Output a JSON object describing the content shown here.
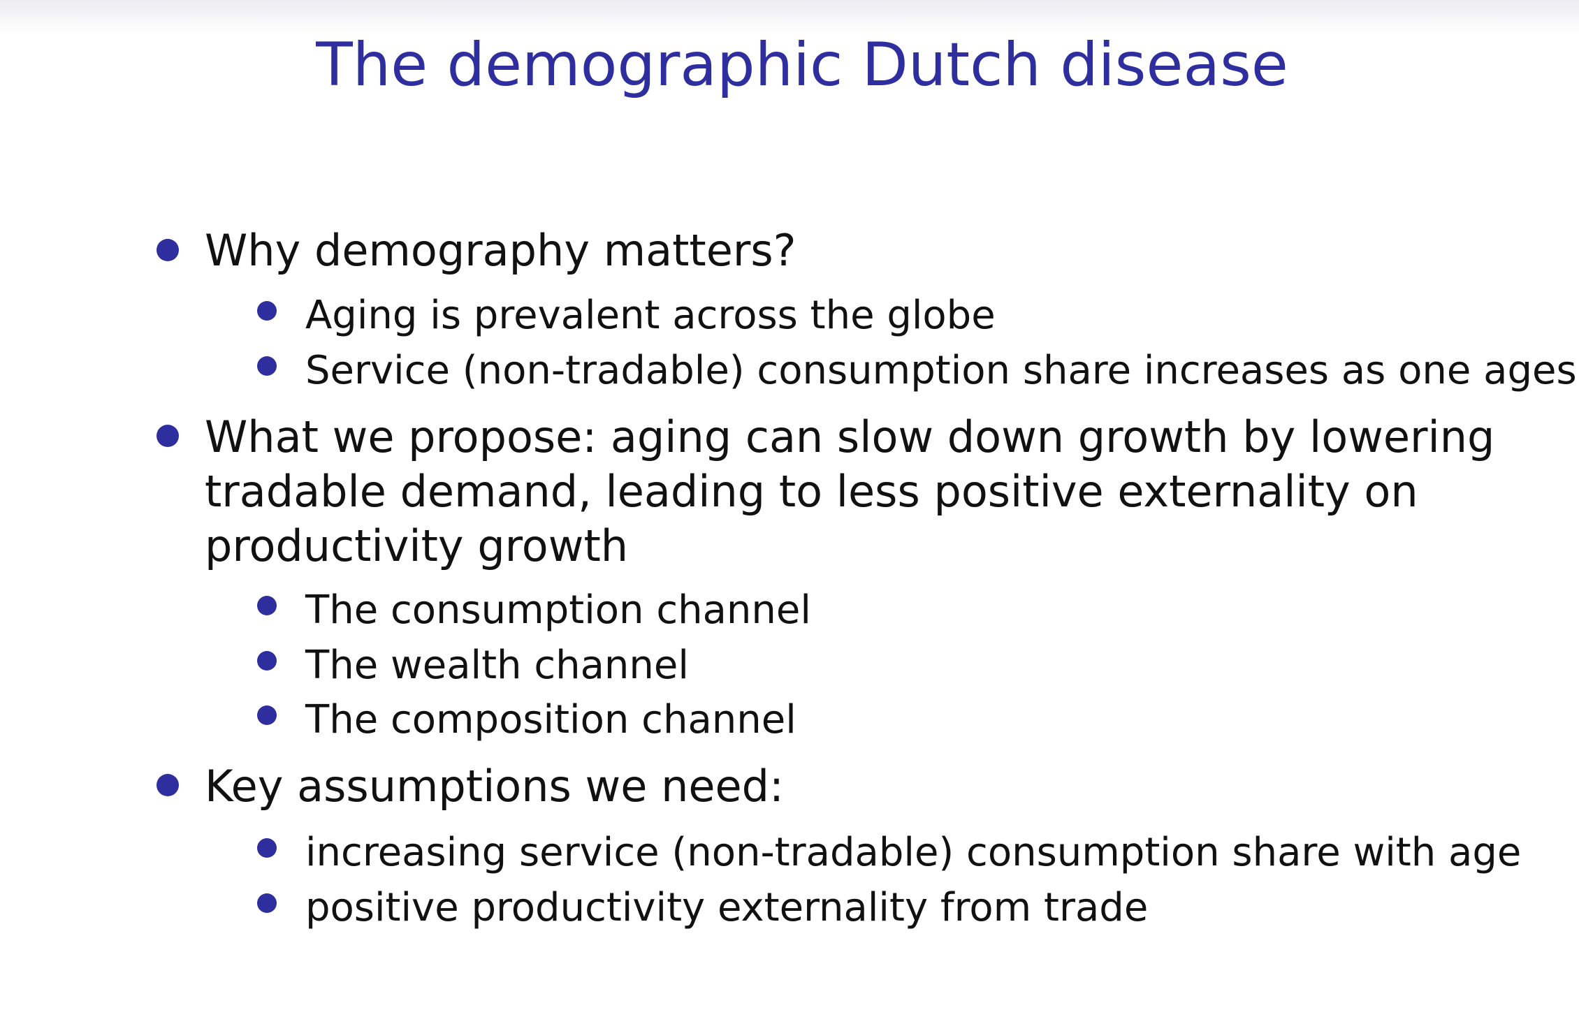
{
  "slide": {
    "title": "The demographic Dutch disease",
    "items": [
      {
        "text": "Why demography matters?",
        "subitems": [
          "Aging is prevalent across the globe",
          "Service (non-tradable) consumption share increases as one ages"
        ]
      },
      {
        "lines": [
          "What we propose: aging can slow down growth by lowering",
          "tradable demand, leading to less positive externality on",
          "productivity growth"
        ],
        "subitems": [
          "The consumption channel",
          "The wealth channel",
          "The composition channel"
        ]
      },
      {
        "text": "Key assumptions we need:",
        "subitems": [
          "increasing service (non-tradable) consumption share with age",
          "positive productivity externality from trade"
        ]
      }
    ]
  },
  "colors": {
    "accent": "#2e2e9e",
    "text": "#111111",
    "background": "#ffffff"
  }
}
